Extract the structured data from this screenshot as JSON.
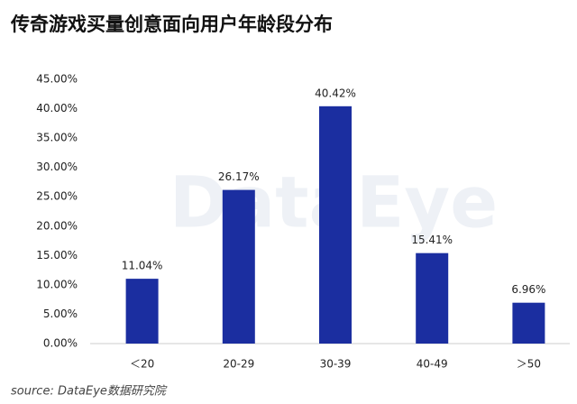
{
  "chart_data": {
    "type": "bar",
    "title": "传奇游戏买量创意面向用户年龄段分布",
    "watermark": "DataEye",
    "source": "source: DataEye数据研究院",
    "categories": [
      "＜20",
      "20-29",
      "30-39",
      "40-49",
      "＞50"
    ],
    "values": [
      11.04,
      26.17,
      40.42,
      15.41,
      6.96
    ],
    "value_labels": [
      "11.04%",
      "26.17%",
      "40.42%",
      "15.41%",
      "6.96%"
    ],
    "color": "#1b2ea0",
    "ylim": [
      0,
      45
    ],
    "yticks": [
      {
        "value": 0,
        "label": "0.00%"
      },
      {
        "value": 5,
        "label": "5.00%"
      },
      {
        "value": 10,
        "label": "10.00%"
      },
      {
        "value": 15,
        "label": "15.00%"
      },
      {
        "value": 20,
        "label": "20.00%"
      },
      {
        "value": 25,
        "label": "25.00%"
      },
      {
        "value": 30,
        "label": "30.00%"
      },
      {
        "value": 35,
        "label": "35.00%"
      },
      {
        "value": 40,
        "label": "40.00%"
      },
      {
        "value": 45,
        "label": "45.00%"
      }
    ],
    "grid": false
  }
}
